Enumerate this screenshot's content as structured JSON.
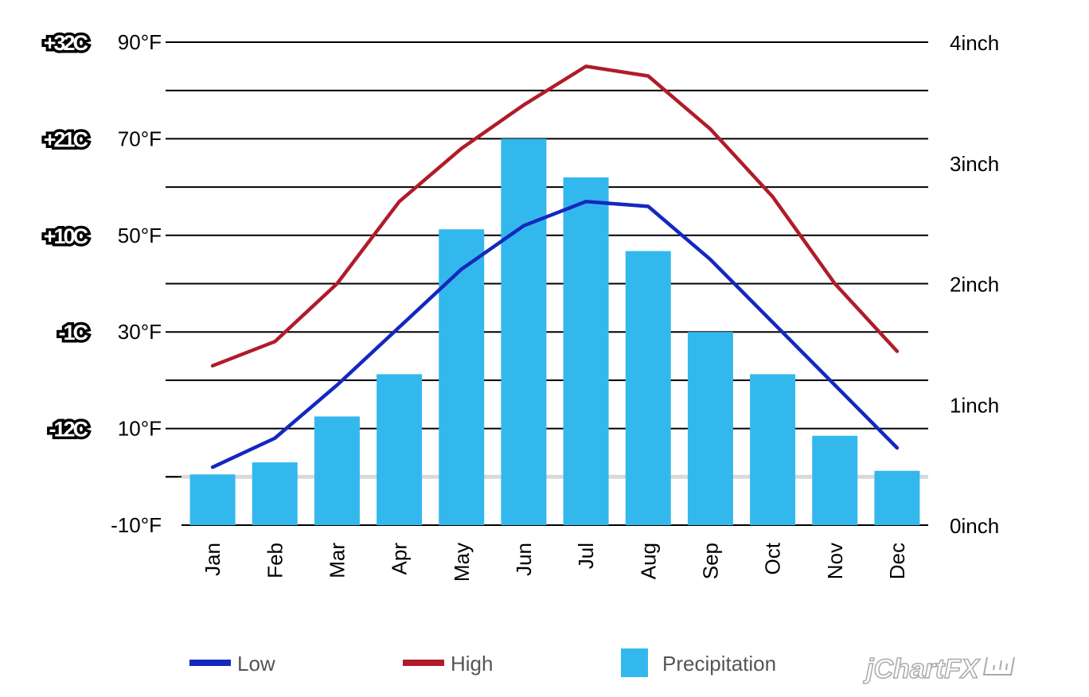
{
  "chart_data": {
    "type": "bar",
    "categories": [
      "Jan",
      "Feb",
      "Mar",
      "Apr",
      "May",
      "Jun",
      "Jul",
      "Aug",
      "Sep",
      "Oct",
      "Nov",
      "Dec"
    ],
    "series": [
      {
        "name": "Low",
        "type": "line",
        "axis": "left",
        "color": "#1428be",
        "values": [
          2,
          8,
          19,
          31,
          43,
          52,
          57,
          56,
          45,
          32,
          19,
          6
        ]
      },
      {
        "name": "High",
        "type": "line",
        "axis": "left",
        "color": "#b01c2a",
        "values": [
          23,
          28,
          40,
          57,
          68,
          77,
          85,
          83,
          72,
          58,
          40,
          26
        ]
      },
      {
        "name": "Precipitation",
        "type": "bar",
        "axis": "right",
        "color": "#33b8ee",
        "values": [
          0.42,
          0.52,
          0.9,
          1.25,
          2.45,
          3.2,
          2.88,
          2.27,
          1.6,
          1.25,
          0.74,
          0.45
        ]
      }
    ],
    "left_axis": {
      "min": -10,
      "max": 90,
      "ticks": [
        -10,
        10,
        30,
        50,
        70,
        90
      ],
      "tick_labels": [
        "-10°F",
        "10°F",
        "30°F",
        "50°F",
        "70°F",
        "90°F"
      ]
    },
    "celsius_labels": [
      {
        "value": 10,
        "label": "-12C"
      },
      {
        "value": 30,
        "label": "-1C"
      },
      {
        "value": 50,
        "label": "+10C"
      },
      {
        "value": 70,
        "label": "+21C"
      },
      {
        "value": 90,
        "label": "+32C"
      }
    ],
    "right_axis": {
      "min": 0,
      "max": 4,
      "ticks": [
        0,
        1,
        2,
        3,
        4
      ],
      "tick_labels": [
        "0inch",
        "1inch",
        "2inch",
        "3inch",
        "4inch"
      ]
    },
    "gridlines": [
      0,
      10,
      20,
      30,
      40,
      50,
      60,
      70,
      80,
      90
    ],
    "reference_line": {
      "value": 0,
      "color": "#d9d9d9"
    },
    "grid": true,
    "legend_position": "bottom"
  },
  "legend": {
    "low": "Low",
    "high": "High",
    "precipitation": "Precipitation"
  },
  "brand": "jChartFX"
}
